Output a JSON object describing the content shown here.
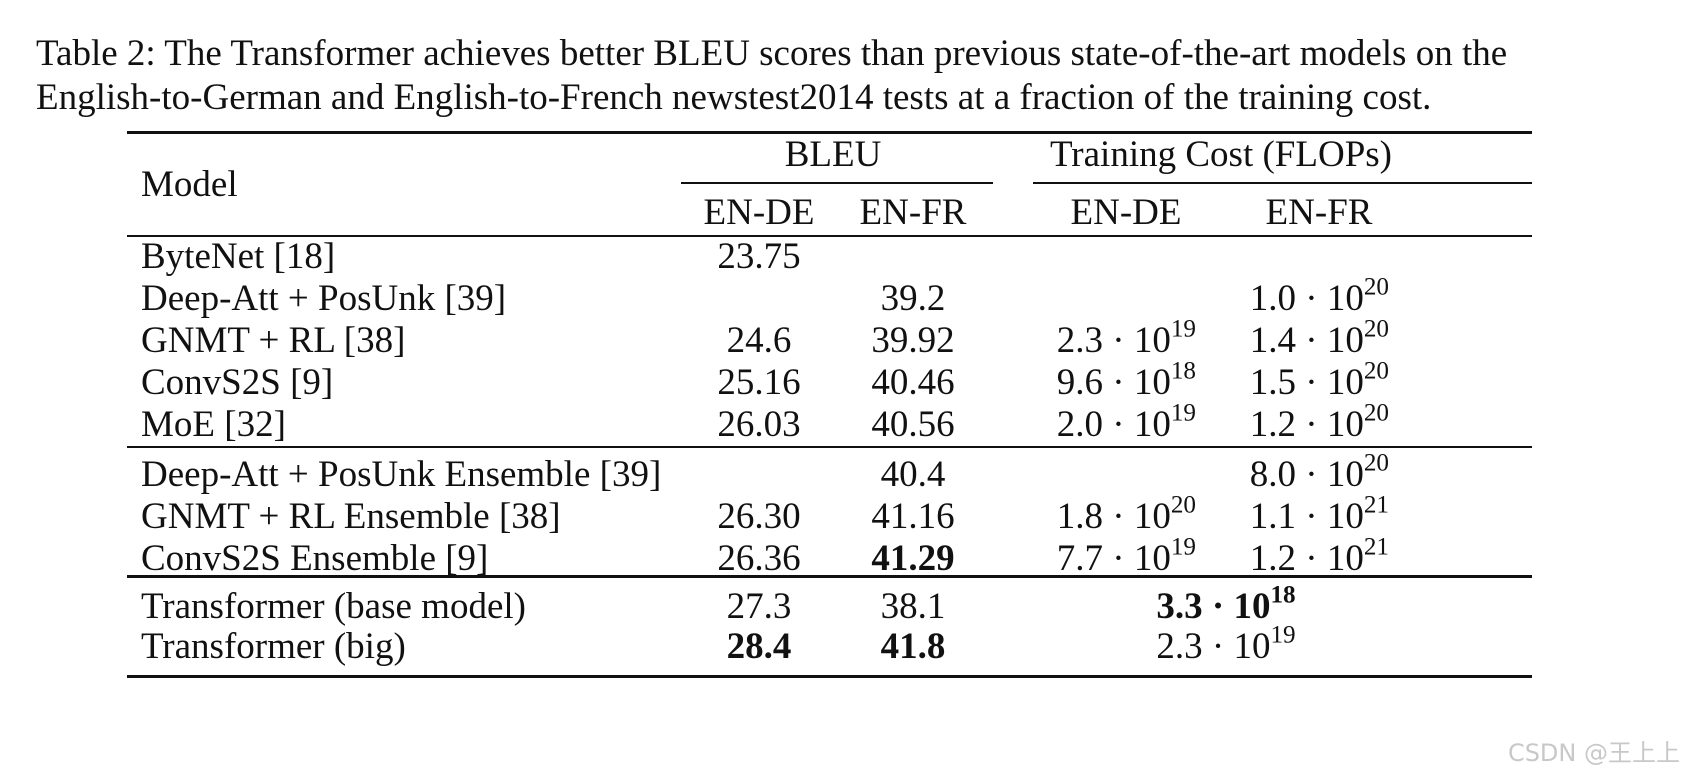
{
  "caption": {
    "line1": "Table 2: The Transformer achieves better BLEU scores than previous state-of-the-art models on the",
    "line2": "English-to-German and English-to-French newstest2014 tests at a fraction of the training cost."
  },
  "header": {
    "model": "Model",
    "bleu": "BLEU",
    "cost": "Training Cost (FLOPs)",
    "en_de": "EN-DE",
    "en_fr": "EN-FR"
  },
  "rows": [
    {
      "model": "ByteNet [18]",
      "bleu_de": "23.75",
      "bleu_fr": "",
      "cost_de": "",
      "cost_fr": ""
    },
    {
      "model": "Deep-Att + PosUnk [39]",
      "bleu_de": "",
      "bleu_fr": "39.2",
      "cost_de": "",
      "cost_fr": "1.0 · 10^20"
    },
    {
      "model": "GNMT + RL [38]",
      "bleu_de": "24.6",
      "bleu_fr": "39.92",
      "cost_de": "2.3 · 10^19",
      "cost_fr": "1.4 · 10^20"
    },
    {
      "model": "ConvS2S [9]",
      "bleu_de": "25.16",
      "bleu_fr": "40.46",
      "cost_de": "9.6 · 10^18",
      "cost_fr": "1.5 · 10^20"
    },
    {
      "model": "MoE [32]",
      "bleu_de": "26.03",
      "bleu_fr": "40.56",
      "cost_de": "2.0 · 10^19",
      "cost_fr": "1.2 · 10^20"
    },
    {
      "model": "Deep-Att + PosUnk Ensemble [39]",
      "bleu_de": "",
      "bleu_fr": "40.4",
      "cost_de": "",
      "cost_fr": "8.0 · 10^20"
    },
    {
      "model": "GNMT + RL Ensemble [38]",
      "bleu_de": "26.30",
      "bleu_fr": "41.16",
      "cost_de": "1.8 · 10^20",
      "cost_fr": "1.1 · 10^21"
    },
    {
      "model": "ConvS2S Ensemble [9]",
      "bleu_de": "26.36",
      "bleu_fr": "41.29",
      "cost_de": "7.7 · 10^19",
      "cost_fr": "1.2 · 10^21"
    },
    {
      "model": "Transformer (base model)",
      "bleu_de": "27.3",
      "bleu_fr": "38.1",
      "cost_merged": "3.3 · 10^18"
    },
    {
      "model": "Transformer (big)",
      "bleu_de": "28.4",
      "bleu_fr": "41.8",
      "cost_merged": "2.3 · 10^19"
    }
  ],
  "bold_cells": [
    "7.bleu_fr",
    "8.cost_merged",
    "9.bleu_de",
    "9.bleu_fr"
  ],
  "watermark": "CSDN @王上上"
}
